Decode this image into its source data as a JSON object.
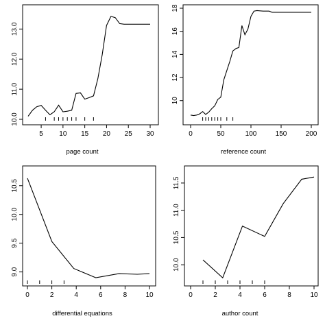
{
  "chart_data": [
    {
      "type": "line",
      "xlabel": "page count",
      "ylabel": "",
      "xlim": [
        2,
        30
      ],
      "ylim": [
        10,
        13.6
      ],
      "xticks": [
        5,
        10,
        15,
        20,
        25,
        30
      ],
      "yticks": [
        10.0,
        11.0,
        12.0,
        13.0
      ],
      "ytick_labels": [
        "10.0",
        "11.0",
        "12.0",
        "13.0"
      ],
      "grid": false,
      "x": [
        2,
        3,
        4,
        5,
        6,
        7,
        8,
        9,
        10,
        11,
        12,
        13,
        14,
        15,
        16,
        17,
        18,
        19,
        20,
        21,
        22,
        23,
        24,
        25,
        26,
        27,
        28,
        29,
        30
      ],
      "y": [
        10.1,
        10.3,
        10.42,
        10.46,
        10.3,
        10.15,
        10.25,
        10.47,
        10.25,
        10.27,
        10.3,
        10.86,
        10.88,
        10.67,
        10.72,
        10.78,
        11.35,
        12.15,
        13.12,
        13.42,
        13.38,
        13.18,
        13.16,
        13.16,
        13.16,
        13.16,
        13.16,
        13.16,
        13.16
      ],
      "rug": [
        6,
        8,
        9,
        10,
        11,
        12,
        13,
        15,
        17
      ]
    },
    {
      "type": "line",
      "xlabel": "reference count",
      "ylabel": "",
      "xlim": [
        0,
        200
      ],
      "ylim": [
        8.5,
        18
      ],
      "xticks": [
        0,
        50,
        100,
        150,
        200
      ],
      "yticks": [
        10,
        12,
        14,
        16,
        18
      ],
      "ytick_labels": [
        "10",
        "12",
        "14",
        "16",
        "18"
      ],
      "grid": false,
      "x": [
        0,
        5,
        10,
        15,
        20,
        25,
        30,
        35,
        40,
        45,
        50,
        55,
        60,
        65,
        70,
        75,
        80,
        85,
        90,
        95,
        100,
        105,
        110,
        120,
        130,
        135,
        140,
        150,
        160,
        170,
        180,
        190,
        200
      ],
      "y": [
        8.75,
        8.7,
        8.75,
        8.85,
        9.05,
        8.8,
        9.0,
        9.3,
        9.55,
        10.1,
        10.3,
        11.8,
        12.6,
        13.4,
        14.3,
        14.5,
        14.6,
        16.5,
        15.7,
        16.2,
        17.3,
        17.75,
        17.8,
        17.75,
        17.75,
        17.65,
        17.65,
        17.65,
        17.65,
        17.65,
        17.65,
        17.65,
        17.65
      ],
      "rug": [
        20,
        25,
        30,
        35,
        40,
        45,
        50,
        60,
        70
      ]
    },
    {
      "type": "line",
      "xlabel": "differential equations",
      "ylabel": "",
      "xlim": [
        0,
        10
      ],
      "ylim": [
        8.9,
        10.7
      ],
      "xticks": [
        0,
        2,
        4,
        6,
        8,
        10
      ],
      "yticks": [
        9.0,
        9.5,
        10.0,
        10.5
      ],
      "ytick_labels": [
        "9.0",
        "9.5",
        "10.0",
        "10.5"
      ],
      "grid": false,
      "x": [
        0,
        2,
        3.8,
        5.6,
        7.5,
        9,
        10
      ],
      "y": [
        10.63,
        9.53,
        9.06,
        8.9,
        8.97,
        8.96,
        8.97
      ],
      "rug": [
        0,
        1,
        2,
        3
      ]
    },
    {
      "type": "line",
      "xlabel": "author count",
      "ylabel": "",
      "xlim": [
        0,
        10
      ],
      "ylim": [
        9.7,
        11.65
      ],
      "xticks": [
        0,
        2,
        4,
        6,
        8,
        10
      ],
      "yticks": [
        10.0,
        10.5,
        11.0,
        11.5
      ],
      "ytick_labels": [
        "10.0",
        "10.5",
        "11.0",
        "11.5"
      ],
      "grid": false,
      "x": [
        1,
        2.6,
        4.2,
        6,
        7.5,
        9,
        10
      ],
      "y": [
        10.09,
        9.76,
        10.71,
        10.52,
        11.12,
        11.57,
        11.61
      ],
      "rug": [
        1,
        2,
        3,
        4,
        5,
        6
      ]
    }
  ]
}
